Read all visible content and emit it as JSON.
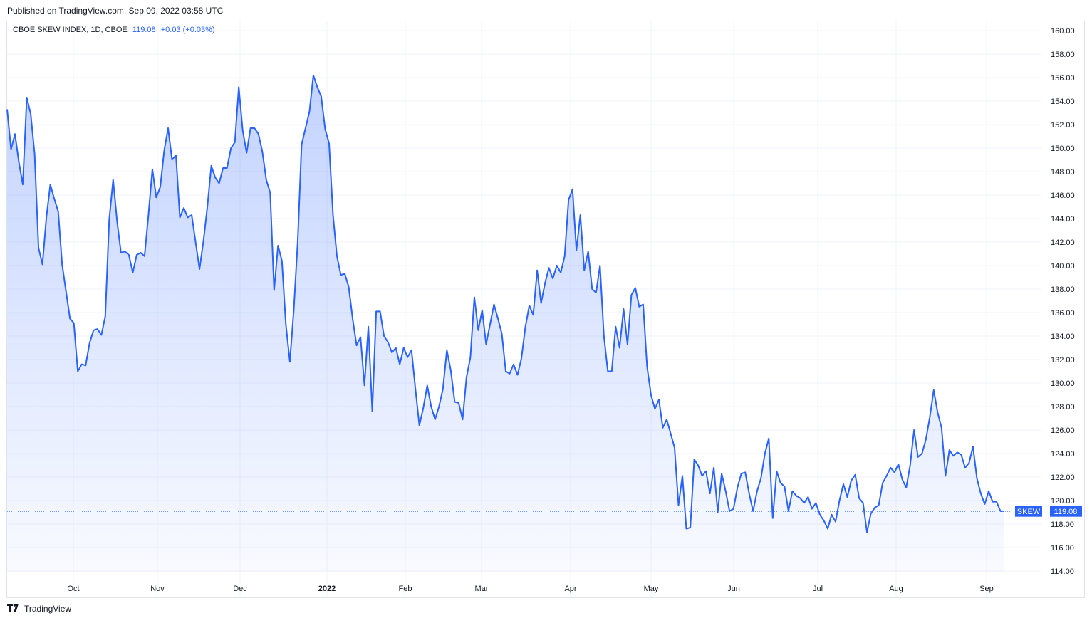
{
  "header": {
    "published": "Published on TradingView.com, Sep 09, 2022 03:58 UTC"
  },
  "legend": {
    "symbol": "CBOE SKEW INDEX, 1D, CBOE",
    "last": "119.08",
    "change": "+0.03 (+0.03%)"
  },
  "price_label": {
    "ticker": "SKEW",
    "value": "119.08"
  },
  "footer": {
    "brand": "TradingView"
  },
  "colors": {
    "line": "#2962ff",
    "ticker_bg": "#2962ff",
    "grid": "#f0f3fa"
  },
  "chart_data": {
    "type": "area",
    "title": "CBOE SKEW INDEX, 1D, CBOE",
    "ylim": [
      113,
      161
    ],
    "yticks": [
      "114.00",
      "116.00",
      "118.00",
      "120.00",
      "122.00",
      "124.00",
      "126.00",
      "128.00",
      "130.00",
      "132.00",
      "134.00",
      "136.00",
      "138.00",
      "140.00",
      "142.00",
      "144.00",
      "146.00",
      "148.00",
      "150.00",
      "152.00",
      "154.00",
      "156.00",
      "158.00",
      "160.00"
    ],
    "xticks": [
      "Oct",
      "Nov",
      "Dec",
      "2022",
      "Feb",
      "Mar",
      "Apr",
      "May",
      "Jun",
      "Jul",
      "Aug",
      "Sep"
    ],
    "grid": true,
    "last_value": 119.08,
    "series": [
      {
        "values": [
          153.3,
          149.9,
          151.2,
          148.8,
          146.9,
          154.3,
          152.9,
          149.5,
          141.5,
          140.1,
          144.1,
          146.9,
          145.7,
          144.6,
          140.1,
          137.8,
          135.5,
          135.1,
          131.0,
          131.6,
          131.5,
          133.4,
          134.5,
          134.6,
          134.1,
          135.7,
          143.9,
          147.3,
          143.8,
          141.1,
          141.2,
          140.9,
          139.4,
          140.9,
          141.1,
          140.8,
          144.3,
          148.2,
          145.8,
          146.7,
          149.8,
          151.7,
          149.0,
          149.4,
          144.1,
          144.9,
          144.1,
          144.3,
          142.0,
          139.7,
          142.1,
          145.0,
          148.5,
          147.5,
          147.0,
          148.3,
          148.3,
          150.0,
          150.5,
          155.2,
          151.5,
          149.6,
          151.7,
          151.7,
          151.2,
          149.7,
          147.3,
          146.2,
          137.9,
          141.7,
          140.4,
          135.0,
          131.8,
          136.2,
          142.0,
          150.3,
          151.7,
          153.1,
          156.2,
          155.2,
          154.4,
          151.6,
          150.4,
          144.3,
          140.8,
          139.2,
          139.3,
          138.2,
          135.5,
          133.2,
          133.9,
          129.8,
          134.8,
          127.6,
          136.1,
          136.1,
          134.0,
          133.5,
          132.6,
          133.0,
          131.6,
          133.0,
          132.2,
          132.8,
          129.5,
          126.4,
          127.9,
          129.8,
          128.0,
          126.9,
          128.0,
          129.5,
          132.8,
          131.1,
          128.4,
          128.3,
          126.9,
          130.5,
          132.2,
          137.3,
          134.5,
          136.2,
          133.3,
          135.0,
          136.7,
          135.5,
          134.2,
          131.0,
          130.8,
          131.6,
          130.7,
          132.1,
          134.8,
          136.6,
          135.8,
          139.6,
          136.8,
          138.5,
          139.8,
          138.9,
          140.0,
          139.4,
          140.8,
          145.6,
          146.5,
          141.3,
          144.3,
          139.6,
          141.2,
          138.0,
          137.7,
          140.0,
          134.0,
          131.0,
          131.0,
          134.8,
          133.0,
          136.3,
          133.3,
          137.5,
          138.1,
          136.5,
          136.7,
          131.4,
          129.0,
          127.8,
          128.6,
          126.2,
          126.9,
          125.7,
          124.5,
          119.6,
          122.1,
          117.6,
          117.7,
          123.5,
          123.0,
          122.1,
          122.5,
          120.6,
          122.8,
          119.0,
          122.3,
          120.8,
          119.1,
          119.3,
          121.1,
          122.3,
          122.4,
          120.6,
          119.1,
          120.8,
          121.9,
          124.0,
          125.3,
          118.5,
          122.5,
          121.5,
          121.2,
          119.1,
          120.8,
          120.4,
          120.2,
          119.8,
          120.3,
          119.3,
          119.8,
          118.8,
          118.3,
          117.6,
          118.8,
          118.2,
          120.0,
          121.4,
          120.3,
          121.7,
          122.2,
          120.2,
          119.8,
          117.3,
          118.9,
          119.4,
          119.6,
          121.5,
          122.1,
          122.8,
          122.4,
          123.1,
          121.8,
          121.1,
          123.0,
          126.0,
          123.7,
          124.0,
          125.2,
          127.1,
          129.4,
          127.5,
          126.2,
          122.1,
          124.3,
          123.8,
          124.1,
          123.9,
          122.8,
          123.2,
          124.6,
          121.9,
          120.6,
          119.7,
          120.8,
          119.9,
          119.9,
          119.1,
          119.1
        ]
      }
    ]
  }
}
